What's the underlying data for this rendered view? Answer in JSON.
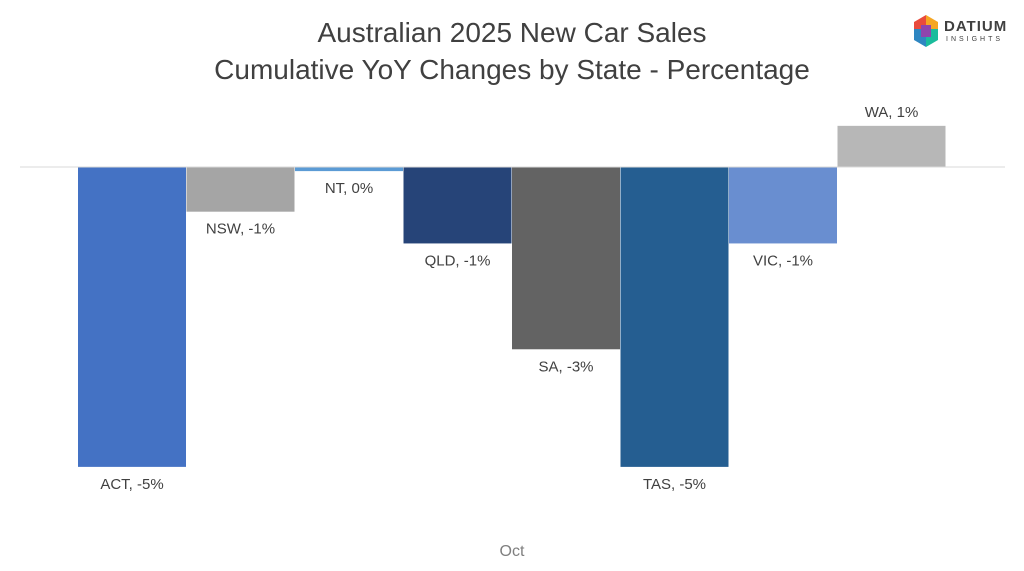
{
  "chart_data": {
    "type": "bar",
    "title": [
      "Australian 2025 New Car Sales",
      "Cumulative YoY Changes by State - Percentage"
    ],
    "categories": [
      "ACT",
      "NSW",
      "NT",
      "QLD",
      "SA",
      "TAS",
      "VIC",
      "WA"
    ],
    "values": [
      -5.1,
      -0.76,
      -0.07,
      -1.3,
      -3.1,
      -5.1,
      -1.3,
      0.7
    ],
    "data_labels": [
      "ACT, -5%",
      "NSW, -1%",
      "NT, 0%",
      "QLD, -1%",
      "SA, -3%",
      "TAS, -5%",
      "VIC, -1%",
      "WA, 1%"
    ],
    "colors": [
      "#4472C4",
      "#A5A5A5",
      "#5B9BD5",
      "#264478",
      "#636363",
      "#255E91",
      "#698ED0",
      "#B7B7B7"
    ],
    "xlabel": "Oct",
    "ylabel": "",
    "ylim": [
      -5.5,
      1.0
    ],
    "grid": false,
    "legend": "none"
  },
  "logo": {
    "name": "DATIUM",
    "sub": "INSIGHTS",
    "colors": [
      "#E94B3C",
      "#F5A623",
      "#2E86C1",
      "#1ABC9C",
      "#8E44AD"
    ]
  }
}
